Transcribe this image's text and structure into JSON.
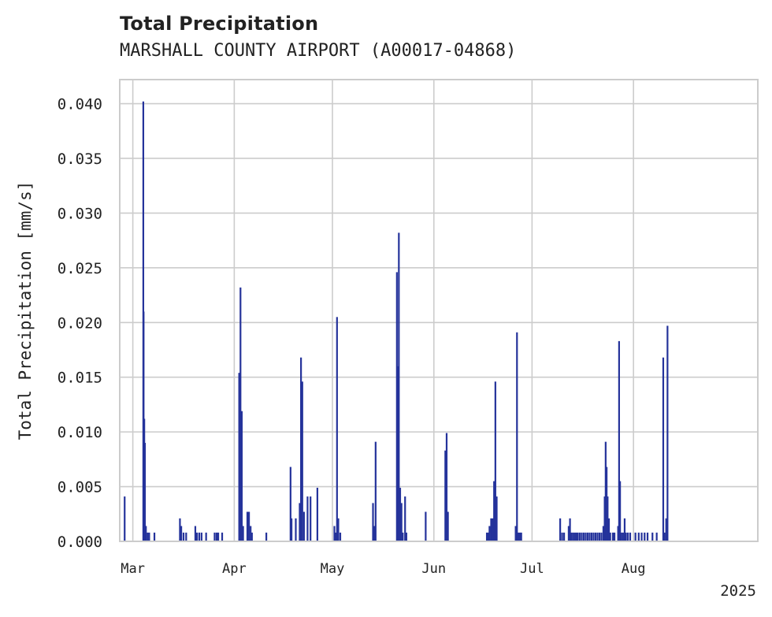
{
  "chart_data": {
    "type": "bar",
    "title": "Total Precipitation",
    "subtitle": "MARSHALL COUNTY AIRPORT (A00017-04868)",
    "xlabel": "",
    "ylabel": "Total Precipitation [mm/s]",
    "ylim": [
      0,
      0.0422
    ],
    "xlim_days": [
      -4,
      191
    ],
    "x_origin_date": "2025-03-01",
    "yticks": [
      {
        "value": 0.0,
        "label": "0.000"
      },
      {
        "value": 0.005,
        "label": "0.005"
      },
      {
        "value": 0.01,
        "label": "0.010"
      },
      {
        "value": 0.015,
        "label": "0.015"
      },
      {
        "value": 0.02,
        "label": "0.020"
      },
      {
        "value": 0.025,
        "label": "0.025"
      },
      {
        "value": 0.03,
        "label": "0.030"
      },
      {
        "value": 0.035,
        "label": "0.035"
      },
      {
        "value": 0.04,
        "label": "0.040"
      }
    ],
    "xticks": [
      {
        "day": 0,
        "label": "Mar"
      },
      {
        "day": 31,
        "label": "Apr"
      },
      {
        "day": 61,
        "label": "May"
      },
      {
        "day": 92,
        "label": "Jun"
      },
      {
        "day": 122,
        "label": "Jul"
      },
      {
        "day": 153,
        "label": "Aug"
      }
    ],
    "year_label": "2025",
    "color": "#25339b",
    "grid": true,
    "series": [
      {
        "name": "Total Precipitation",
        "points": [
          [
            -2.5,
            0.0041
          ],
          [
            3.2,
            0.0402
          ],
          [
            3.3,
            0.021
          ],
          [
            3.5,
            0.0112
          ],
          [
            3.7,
            0.009
          ],
          [
            4.0,
            0.0014
          ],
          [
            4.5,
            0.0008
          ],
          [
            5.0,
            0.0008
          ],
          [
            6.6,
            0.0008
          ],
          [
            14.4,
            0.0021
          ],
          [
            14.8,
            0.0014
          ],
          [
            15.5,
            0.0008
          ],
          [
            16.3,
            0.0008
          ],
          [
            19.1,
            0.0014
          ],
          [
            19.6,
            0.0008
          ],
          [
            20.3,
            0.0008
          ],
          [
            21.0,
            0.0008
          ],
          [
            22.4,
            0.0008
          ],
          [
            25.0,
            0.0008
          ],
          [
            25.6,
            0.0008
          ],
          [
            26.1,
            0.0008
          ],
          [
            27.3,
            0.0008
          ],
          [
            32.5,
            0.0154
          ],
          [
            32.9,
            0.0232
          ],
          [
            33.3,
            0.0119
          ],
          [
            33.7,
            0.0014
          ],
          [
            35.0,
            0.0027
          ],
          [
            35.5,
            0.0027
          ],
          [
            36.0,
            0.0014
          ],
          [
            36.4,
            0.0008
          ],
          [
            40.8,
            0.0008
          ],
          [
            48.2,
            0.0068
          ],
          [
            48.5,
            0.0021
          ],
          [
            49.8,
            0.0021
          ],
          [
            51.0,
            0.0035
          ],
          [
            51.4,
            0.0168
          ],
          [
            51.8,
            0.0146
          ],
          [
            52.3,
            0.0027
          ],
          [
            53.4,
            0.0041
          ],
          [
            54.3,
            0.0041
          ],
          [
            56.4,
            0.0049
          ],
          [
            61.6,
            0.0014
          ],
          [
            62.1,
            0.0008
          ],
          [
            62.4,
            0.0205
          ],
          [
            62.8,
            0.0021
          ],
          [
            63.4,
            0.0008
          ],
          [
            73.4,
            0.0035
          ],
          [
            73.8,
            0.0014
          ],
          [
            74.2,
            0.0091
          ],
          [
            80.7,
            0.0246
          ],
          [
            81.0,
            0.016
          ],
          [
            81.3,
            0.0282
          ],
          [
            81.7,
            0.0049
          ],
          [
            82.1,
            0.0035
          ],
          [
            82.5,
            0.0008
          ],
          [
            83.2,
            0.0041
          ],
          [
            83.6,
            0.0008
          ],
          [
            89.5,
            0.0027
          ],
          [
            95.5,
            0.0083
          ],
          [
            95.9,
            0.0099
          ],
          [
            96.3,
            0.0027
          ],
          [
            108.2,
            0.0008
          ],
          [
            108.6,
            0.0008
          ],
          [
            109.0,
            0.0014
          ],
          [
            109.5,
            0.0021
          ],
          [
            110.0,
            0.0021
          ],
          [
            110.4,
            0.0055
          ],
          [
            110.8,
            0.0146
          ],
          [
            111.2,
            0.0041
          ],
          [
            117.0,
            0.0014
          ],
          [
            117.4,
            0.0191
          ],
          [
            117.8,
            0.0008
          ],
          [
            118.3,
            0.0008
          ],
          [
            118.7,
            0.0008
          ],
          [
            130.6,
            0.0021
          ],
          [
            131.2,
            0.0008
          ],
          [
            131.8,
            0.0008
          ],
          [
            133.2,
            0.0014
          ],
          [
            133.6,
            0.0021
          ],
          [
            134.0,
            0.0008
          ],
          [
            134.5,
            0.0008
          ],
          [
            135.0,
            0.0008
          ],
          [
            135.5,
            0.0008
          ],
          [
            136.0,
            0.0008
          ],
          [
            136.6,
            0.0008
          ],
          [
            137.2,
            0.0008
          ],
          [
            137.8,
            0.0008
          ],
          [
            138.4,
            0.0008
          ],
          [
            139.0,
            0.0008
          ],
          [
            139.6,
            0.0008
          ],
          [
            140.2,
            0.0008
          ],
          [
            140.8,
            0.0008
          ],
          [
            141.4,
            0.0008
          ],
          [
            142.0,
            0.0008
          ],
          [
            142.6,
            0.0008
          ],
          [
            143.2,
            0.0008
          ],
          [
            143.8,
            0.0014
          ],
          [
            144.2,
            0.0041
          ],
          [
            144.5,
            0.0091
          ],
          [
            144.8,
            0.0068
          ],
          [
            145.1,
            0.0041
          ],
          [
            145.5,
            0.0021
          ],
          [
            145.9,
            0.0008
          ],
          [
            146.7,
            0.0008
          ],
          [
            147.2,
            0.0008
          ],
          [
            148.3,
            0.0014
          ],
          [
            148.6,
            0.0183
          ],
          [
            148.9,
            0.0055
          ],
          [
            149.3,
            0.0008
          ],
          [
            149.8,
            0.0008
          ],
          [
            150.3,
            0.0021
          ],
          [
            150.7,
            0.0008
          ],
          [
            151.3,
            0.0008
          ],
          [
            152.0,
            0.0008
          ],
          [
            153.6,
            0.0008
          ],
          [
            154.6,
            0.0008
          ],
          [
            155.5,
            0.0008
          ],
          [
            156.4,
            0.0008
          ],
          [
            157.3,
            0.0008
          ],
          [
            158.8,
            0.0008
          ],
          [
            160.1,
            0.0008
          ],
          [
            162.1,
            0.0168
          ],
          [
            162.5,
            0.0008
          ],
          [
            163.0,
            0.0021
          ],
          [
            163.4,
            0.0197
          ]
        ]
      }
    ]
  }
}
